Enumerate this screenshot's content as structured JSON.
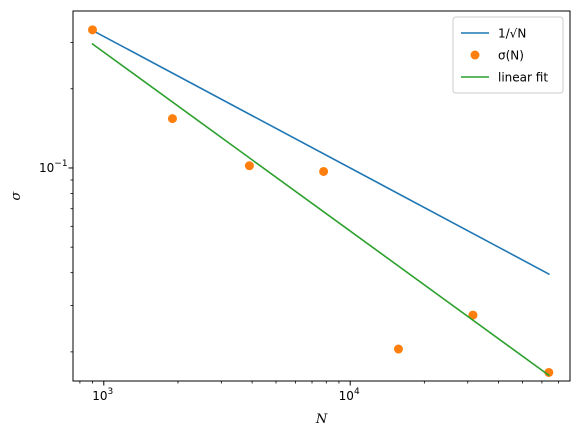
{
  "chart_data": {
    "type": "scatter",
    "title": "",
    "xlabel": "N",
    "ylabel": "σ",
    "xscale": "log",
    "yscale": "log",
    "xlim": [
      750,
      78000
    ],
    "ylim": [
      0.0155,
      0.395
    ],
    "grid": false,
    "legend_position": "top-right",
    "x_ticks": [
      {
        "value": 1000,
        "base": "10",
        "exp": "3"
      },
      {
        "value": 10000,
        "base": "10",
        "exp": "4"
      }
    ],
    "y_ticks": [
      {
        "value": 0.1,
        "base": "10",
        "exp": "−1"
      }
    ],
    "series": [
      {
        "name": "1/√N",
        "kind": "line",
        "color": "#1f77b4",
        "x": [
          900,
          64000
        ],
        "y": [
          0.3333,
          0.03953
        ]
      },
      {
        "name": "σ(N)",
        "kind": "points",
        "color": "#ff7f0e",
        "x": [
          900,
          1900,
          3900,
          7800,
          15700,
          31500,
          64000
        ],
        "y": [
          0.335,
          0.154,
          0.102,
          0.097,
          0.0205,
          0.0276,
          0.0167
        ]
      },
      {
        "name": "linear fit",
        "kind": "line",
        "color": "#2ca02c",
        "x": [
          900,
          64000
        ],
        "y": [
          0.296,
          0.0163
        ]
      }
    ]
  }
}
